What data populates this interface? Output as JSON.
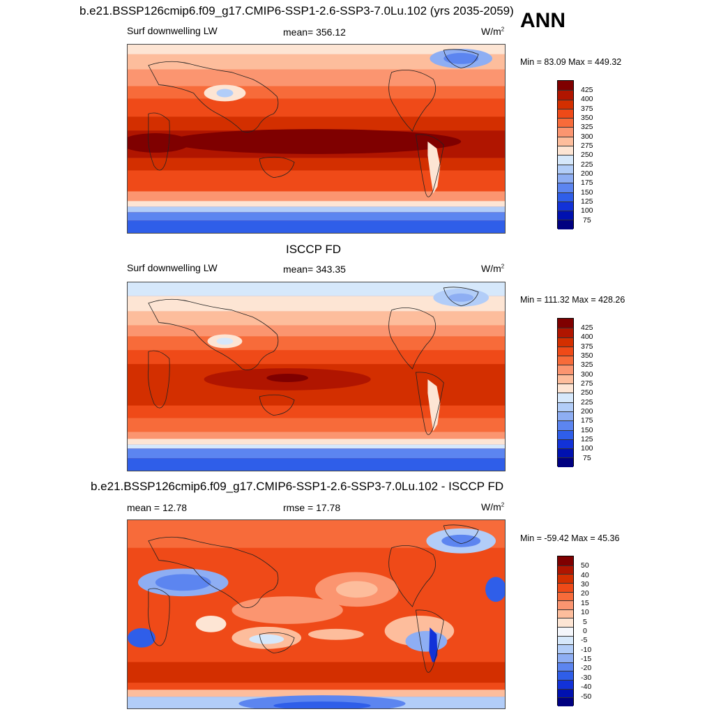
{
  "season": "ANN",
  "panels": [
    {
      "title": "b.e21.BSSP126cmip6.f09_g17.CMIP6-SSP1-2.6-SSP3-7.0Lu.102 (yrs 2035-2059)",
      "left_label": "Surf downwelling LW",
      "center_label": "mean= 356.12",
      "units_base": "W/m",
      "units_exp": "2",
      "minmax": "Min =  83.09 Max = 449.32",
      "field_type": "absolute",
      "colorbar_labels": [
        "425",
        "400",
        "375",
        "350",
        "325",
        "300",
        "275",
        "250",
        "225",
        "200",
        "175",
        "150",
        "125",
        "100",
        "75"
      ]
    },
    {
      "title": "ISCCP FD",
      "left_label": "Surf downwelling LW",
      "center_label": "mean= 343.35",
      "units_base": "W/m",
      "units_exp": "2",
      "minmax": "Min = 111.32 Max = 428.26",
      "field_type": "absolute",
      "colorbar_labels": [
        "425",
        "400",
        "375",
        "350",
        "325",
        "300",
        "275",
        "250",
        "225",
        "200",
        "175",
        "150",
        "125",
        "100",
        "75"
      ]
    },
    {
      "title": "b.e21.BSSP126cmip6.f09_g17.CMIP6-SSP1-2.6-SSP3-7.0Lu.102 - ISCCP FD",
      "left_label": "mean =  12.78",
      "center_label": "rmse =  17.78",
      "units_base": "W/m",
      "units_exp": "2",
      "minmax": "Min = -59.42 Max =  45.36",
      "field_type": "difference",
      "colorbar_labels": [
        "50",
        "40",
        "30",
        "20",
        "15",
        "10",
        "5",
        "0",
        "-5",
        "-10",
        "-15",
        "-20",
        "-30",
        "-40",
        "-50"
      ]
    }
  ],
  "colors": {
    "absolute_scale": [
      "#7f0000",
      "#b01500",
      "#d32f00",
      "#ef4a18",
      "#f76b3a",
      "#fb9570",
      "#fdbd9c",
      "#fde5d4",
      "#d6e8fb",
      "#b2cdf8",
      "#8eaef3",
      "#5c85f0",
      "#2f5ee9",
      "#1232d8",
      "#0011b0",
      "#000080"
    ],
    "difference_scale": [
      "#7f0000",
      "#b01500",
      "#d32f00",
      "#ef4a18",
      "#f76b3a",
      "#fb9570",
      "#fdbd9c",
      "#fde5d4",
      "#f4f6fb",
      "#d6e8fb",
      "#b2cdf8",
      "#8eaef3",
      "#5c85f0",
      "#2f5ee9",
      "#1232d8",
      "#0011b0",
      "#000080"
    ]
  }
}
